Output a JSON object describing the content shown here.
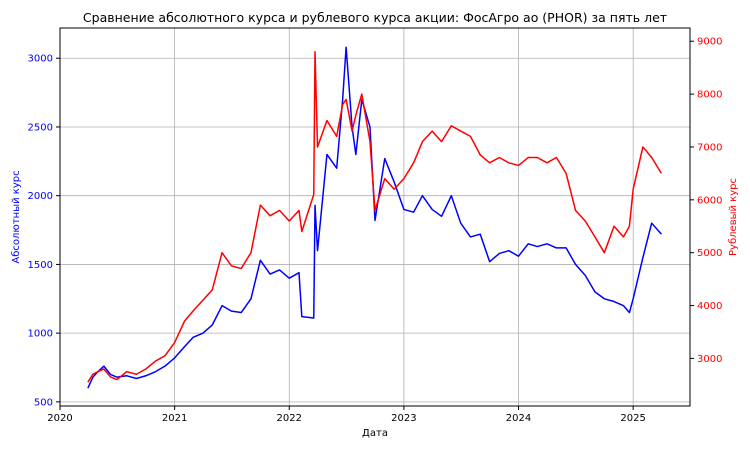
{
  "chart_data": {
    "type": "line",
    "title": "Сравнение абсолютного курса и рублевого курса акции: ФосАгро ао (PHOR) за пять лет",
    "xlabel": "Дата",
    "ylabel_left": "Абсолютный курс",
    "ylabel_right": "Рублевый курс",
    "xlim": [
      "2020-01-01",
      "2025-07-01"
    ],
    "ylim_left": [
      470,
      3220
    ],
    "ylim_right": [
      2100,
      9250
    ],
    "x_ticks": [
      "2020",
      "2021",
      "2022",
      "2023",
      "2024",
      "2025"
    ],
    "y_ticks_left": [
      500,
      1000,
      1500,
      2000,
      2500,
      3000
    ],
    "y_ticks_right": [
      3000,
      4000,
      5000,
      6000,
      7000,
      8000,
      9000
    ],
    "grid": true,
    "colors": {
      "left_axis": "#0000ff",
      "right_axis": "#ff0000"
    },
    "series": [
      {
        "axis": "left",
        "color": "#0000ff",
        "points": [
          [
            "2020-03-30",
            600
          ],
          [
            "2020-04-15",
            680
          ],
          [
            "2020-05-01",
            720
          ],
          [
            "2020-05-20",
            760
          ],
          [
            "2020-06-10",
            700
          ],
          [
            "2020-07-01",
            680
          ],
          [
            "2020-08-01",
            690
          ],
          [
            "2020-09-01",
            670
          ],
          [
            "2020-10-01",
            690
          ],
          [
            "2020-11-01",
            720
          ],
          [
            "2020-12-01",
            760
          ],
          [
            "2021-01-01",
            820
          ],
          [
            "2021-02-01",
            900
          ],
          [
            "2021-03-01",
            970
          ],
          [
            "2021-04-01",
            1000
          ],
          [
            "2021-05-01",
            1060
          ],
          [
            "2021-06-01",
            1200
          ],
          [
            "2021-07-01",
            1160
          ],
          [
            "2021-08-01",
            1150
          ],
          [
            "2021-09-01",
            1250
          ],
          [
            "2021-10-01",
            1530
          ],
          [
            "2021-11-01",
            1430
          ],
          [
            "2021-12-01",
            1460
          ],
          [
            "2022-01-01",
            1400
          ],
          [
            "2022-02-01",
            1440
          ],
          [
            "2022-02-10",
            1120
          ],
          [
            "2022-03-20",
            1110
          ],
          [
            "2022-03-24",
            1930
          ],
          [
            "2022-04-01",
            1600
          ],
          [
            "2022-05-01",
            2300
          ],
          [
            "2022-06-01",
            2200
          ],
          [
            "2022-06-20",
            2700
          ],
          [
            "2022-07-01",
            3080
          ],
          [
            "2022-07-20",
            2500
          ],
          [
            "2022-08-01",
            2300
          ],
          [
            "2022-08-20",
            2700
          ],
          [
            "2022-09-15",
            2500
          ],
          [
            "2022-10-01",
            1820
          ],
          [
            "2022-11-01",
            2270
          ],
          [
            "2022-12-01",
            2100
          ],
          [
            "2023-01-01",
            1900
          ],
          [
            "2023-02-01",
            1880
          ],
          [
            "2023-03-01",
            2000
          ],
          [
            "2023-04-01",
            1900
          ],
          [
            "2023-05-01",
            1850
          ],
          [
            "2023-06-01",
            2000
          ],
          [
            "2023-07-01",
            1800
          ],
          [
            "2023-08-01",
            1700
          ],
          [
            "2023-09-01",
            1720
          ],
          [
            "2023-10-01",
            1520
          ],
          [
            "2023-11-01",
            1580
          ],
          [
            "2023-12-01",
            1600
          ],
          [
            "2024-01-01",
            1560
          ],
          [
            "2024-02-01",
            1650
          ],
          [
            "2024-03-01",
            1630
          ],
          [
            "2024-04-01",
            1650
          ],
          [
            "2024-05-01",
            1620
          ],
          [
            "2024-06-01",
            1620
          ],
          [
            "2024-07-01",
            1500
          ],
          [
            "2024-08-01",
            1420
          ],
          [
            "2024-09-01",
            1300
          ],
          [
            "2024-10-01",
            1250
          ],
          [
            "2024-11-01",
            1230
          ],
          [
            "2024-12-01",
            1200
          ],
          [
            "2024-12-20",
            1150
          ],
          [
            "2025-01-01",
            1250
          ],
          [
            "2025-02-01",
            1550
          ],
          [
            "2025-03-01",
            1800
          ],
          [
            "2025-04-01",
            1720
          ]
        ]
      },
      {
        "axis": "right",
        "color": "#ff0000",
        "points": [
          [
            "2020-03-30",
            2550
          ],
          [
            "2020-04-15",
            2700
          ],
          [
            "2020-05-01",
            2750
          ],
          [
            "2020-05-20",
            2800
          ],
          [
            "2020-06-10",
            2650
          ],
          [
            "2020-07-01",
            2600
          ],
          [
            "2020-08-01",
            2750
          ],
          [
            "2020-09-01",
            2700
          ],
          [
            "2020-10-01",
            2800
          ],
          [
            "2020-11-01",
            2950
          ],
          [
            "2020-12-01",
            3050
          ],
          [
            "2021-01-01",
            3300
          ],
          [
            "2021-02-01",
            3700
          ],
          [
            "2021-03-01",
            3900
          ],
          [
            "2021-04-01",
            4100
          ],
          [
            "2021-05-01",
            4300
          ],
          [
            "2021-06-01",
            5000
          ],
          [
            "2021-07-01",
            4750
          ],
          [
            "2021-08-01",
            4700
          ],
          [
            "2021-09-01",
            5000
          ],
          [
            "2021-10-01",
            5900
          ],
          [
            "2021-11-01",
            5700
          ],
          [
            "2021-12-01",
            5800
          ],
          [
            "2022-01-01",
            5600
          ],
          [
            "2022-02-01",
            5800
          ],
          [
            "2022-02-10",
            5400
          ],
          [
            "2022-03-20",
            6100
          ],
          [
            "2022-03-24",
            8800
          ],
          [
            "2022-04-01",
            7000
          ],
          [
            "2022-05-01",
            7500
          ],
          [
            "2022-06-01",
            7200
          ],
          [
            "2022-06-20",
            7800
          ],
          [
            "2022-07-01",
            7900
          ],
          [
            "2022-07-20",
            7300
          ],
          [
            "2022-08-01",
            7600
          ],
          [
            "2022-08-20",
            8000
          ],
          [
            "2022-09-15",
            7100
          ],
          [
            "2022-10-01",
            5800
          ],
          [
            "2022-11-01",
            6400
          ],
          [
            "2022-12-01",
            6200
          ],
          [
            "2023-01-01",
            6400
          ],
          [
            "2023-02-01",
            6700
          ],
          [
            "2023-03-01",
            7100
          ],
          [
            "2023-04-01",
            7300
          ],
          [
            "2023-05-01",
            7100
          ],
          [
            "2023-06-01",
            7400
          ],
          [
            "2023-07-01",
            7300
          ],
          [
            "2023-08-01",
            7200
          ],
          [
            "2023-09-01",
            6850
          ],
          [
            "2023-10-01",
            6700
          ],
          [
            "2023-11-01",
            6800
          ],
          [
            "2023-12-01",
            6700
          ],
          [
            "2024-01-01",
            6650
          ],
          [
            "2024-02-01",
            6800
          ],
          [
            "2024-03-01",
            6800
          ],
          [
            "2024-04-01",
            6700
          ],
          [
            "2024-05-01",
            6800
          ],
          [
            "2024-06-01",
            6500
          ],
          [
            "2024-07-01",
            5800
          ],
          [
            "2024-08-01",
            5600
          ],
          [
            "2024-09-01",
            5300
          ],
          [
            "2024-10-01",
            5000
          ],
          [
            "2024-11-01",
            5500
          ],
          [
            "2024-12-01",
            5300
          ],
          [
            "2024-12-20",
            5500
          ],
          [
            "2025-01-01",
            6200
          ],
          [
            "2025-02-01",
            7000
          ],
          [
            "2025-03-01",
            6800
          ],
          [
            "2025-04-01",
            6500
          ]
        ]
      }
    ]
  }
}
